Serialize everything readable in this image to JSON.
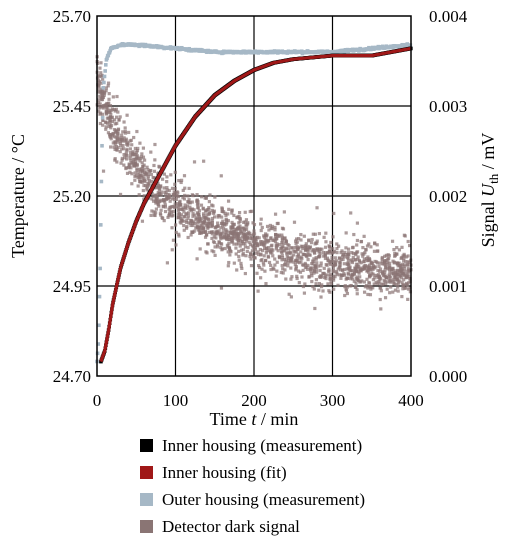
{
  "chart_data": {
    "type": "scatter",
    "x_axis": {
      "label_prefix": "Time ",
      "label_var": "t",
      "label_suffix": " / min",
      "range": [
        0,
        400
      ],
      "ticks": [
        "0",
        "100",
        "200",
        "300",
        "400"
      ]
    },
    "y_axis_left": {
      "label": "Temperature / °C",
      "range": [
        24.7,
        25.7
      ],
      "ticks": [
        "24.70",
        "24.95",
        "25.20",
        "25.45",
        "25.70"
      ]
    },
    "y_axis_right": {
      "label_prefix": "Signal ",
      "label_var": "U",
      "label_sub": "th",
      "label_suffix": " / mV",
      "range": [
        0,
        0.004
      ],
      "ticks": [
        "0.000",
        "0.001",
        "0.002",
        "0.003",
        "0.004"
      ]
    },
    "grid": true,
    "legend_position": "bottom",
    "series": [
      {
        "name": "Inner housing (measurement)",
        "axis": "left",
        "color": "#000000",
        "points": [
          [
            5,
            24.74
          ],
          [
            10,
            24.77
          ],
          [
            15,
            24.83
          ],
          [
            20,
            24.9
          ],
          [
            30,
            25.0
          ],
          [
            40,
            25.07
          ],
          [
            50,
            25.13
          ],
          [
            60,
            25.18
          ],
          [
            75,
            25.24
          ],
          [
            100,
            25.34
          ],
          [
            125,
            25.42
          ],
          [
            150,
            25.48
          ],
          [
            175,
            25.52
          ],
          [
            200,
            25.55
          ],
          [
            225,
            25.57
          ],
          [
            250,
            25.58
          ],
          [
            300,
            25.59
          ],
          [
            350,
            25.59
          ],
          [
            400,
            25.61
          ]
        ]
      },
      {
        "name": "Inner housing (fit)",
        "axis": "left",
        "color": "#a01818",
        "points": [
          [
            5,
            24.74
          ],
          [
            10,
            24.77
          ],
          [
            15,
            24.83
          ],
          [
            20,
            24.9
          ],
          [
            30,
            25.0
          ],
          [
            40,
            25.07
          ],
          [
            50,
            25.13
          ],
          [
            60,
            25.18
          ],
          [
            75,
            25.24
          ],
          [
            100,
            25.34
          ],
          [
            125,
            25.42
          ],
          [
            150,
            25.48
          ],
          [
            175,
            25.52
          ],
          [
            200,
            25.55
          ],
          [
            225,
            25.57
          ],
          [
            250,
            25.58
          ],
          [
            300,
            25.59
          ],
          [
            350,
            25.59
          ],
          [
            400,
            25.61
          ]
        ]
      },
      {
        "name": "Outer housing (measurement)",
        "axis": "left",
        "color": "#a6b8c6",
        "points": [
          [
            0,
            24.74
          ],
          [
            2,
            24.8
          ],
          [
            4,
            25.0
          ],
          [
            6,
            25.3
          ],
          [
            8,
            25.5
          ],
          [
            12,
            25.58
          ],
          [
            18,
            25.61
          ],
          [
            30,
            25.62
          ],
          [
            50,
            25.62
          ],
          [
            100,
            25.61
          ],
          [
            150,
            25.6
          ],
          [
            200,
            25.6
          ],
          [
            250,
            25.6
          ],
          [
            300,
            25.6
          ],
          [
            350,
            25.61
          ],
          [
            400,
            25.62
          ]
        ]
      },
      {
        "name": "Detector dark signal",
        "axis": "right",
        "color": "#8a7574",
        "trend": [
          [
            0,
            0.0033
          ],
          [
            10,
            0.003
          ],
          [
            30,
            0.0026
          ],
          [
            60,
            0.0022
          ],
          [
            100,
            0.0019
          ],
          [
            150,
            0.00165
          ],
          [
            200,
            0.00148
          ],
          [
            250,
            0.00135
          ],
          [
            300,
            0.00125
          ],
          [
            350,
            0.00118
          ],
          [
            400,
            0.00115
          ]
        ],
        "scatter_sd": 0.0002,
        "n_points": 1800
      }
    ]
  }
}
